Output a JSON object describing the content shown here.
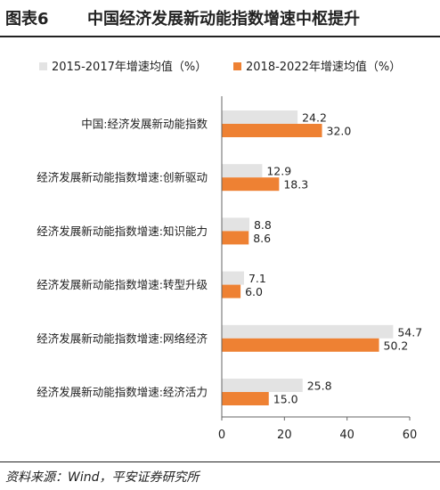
{
  "header": {
    "figure_label": "图表6",
    "title": "中国经济发展新动能指数增速中枢提升"
  },
  "footer": {
    "source": "资料来源：Wind，平安证券研究所"
  },
  "chart_data": {
    "type": "bar",
    "orientation": "horizontal",
    "categories": [
      "中国:经济发展新动能指数",
      "经济发展新动能指数增速:创新驱动",
      "经济发展新动能指数增速:知识能力",
      "经济发展新动能指数增速:转型升级",
      "经济发展新动能指数增速:网络经济",
      "经济发展新动能指数增速:经济活力"
    ],
    "series": [
      {
        "name": "2015-2017年增速均值（%）",
        "color": "#e3e3e3",
        "values": [
          24.2,
          12.9,
          8.8,
          7.1,
          54.7,
          25.8
        ],
        "labels": [
          "24.2",
          "12.9",
          "8.8",
          "7.1",
          "54.7",
          "25.8"
        ]
      },
      {
        "name": "2018-2022年增速均值（%）",
        "color": "#ee8133",
        "values": [
          32.0,
          18.3,
          8.6,
          6.0,
          50.2,
          15.0
        ],
        "labels": [
          "32.0",
          "18.3",
          "8.6",
          "6.0",
          "50.2",
          "15.0"
        ]
      }
    ],
    "xlim": [
      0,
      60
    ],
    "xticks": [
      "0",
      "20",
      "40",
      "60"
    ],
    "legend_position": "top",
    "grid": false
  }
}
